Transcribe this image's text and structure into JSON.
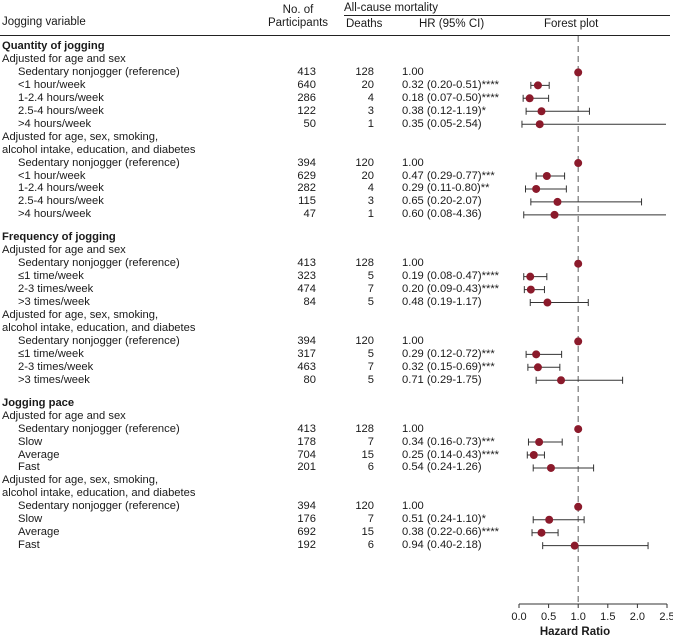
{
  "headers": {
    "variable": "Jogging variable",
    "participants_line1": "No. of",
    "participants_line2": "Participants",
    "mortality_group": "All-cause mortality",
    "deaths": "Deaths",
    "hr": "HR (95% CI)",
    "forest": "Forest plot"
  },
  "chart_data": {
    "type": "forest",
    "xlabel": "Hazard Ratio",
    "xlim": [
      0,
      2.5
    ],
    "ticks": [
      0.0,
      0.5,
      1.0,
      1.5,
      2.0,
      2.5
    ],
    "tick_labels": [
      "0.0",
      "0.5",
      "1.0",
      "1.5",
      "2.0",
      "2.5"
    ],
    "reference_line": 1.0,
    "point_color": "#8b1a2b",
    "rows": [
      {
        "kind": "section",
        "label": "Quantity of jogging"
      },
      {
        "kind": "subheader",
        "label": "Adjusted for age and sex"
      },
      {
        "kind": "data",
        "label": "Sedentary nonjogger (reference)",
        "n": "413",
        "deaths": "128",
        "hr_text": "1.00",
        "hr": 1.0,
        "lo": null,
        "hi": null
      },
      {
        "kind": "data",
        "label": "<1 hour/week",
        "n": "640",
        "deaths": "20",
        "hr_text": "0.32 (0.20-0.51)****",
        "hr": 0.32,
        "lo": 0.2,
        "hi": 0.51
      },
      {
        "kind": "data",
        "label": "1-2.4 hours/week",
        "n": "286",
        "deaths": "4",
        "hr_text": "0.18 (0.07-0.50)****",
        "hr": 0.18,
        "lo": 0.07,
        "hi": 0.5
      },
      {
        "kind": "data",
        "label": "2.5-4 hours/week",
        "n": "122",
        "deaths": "3",
        "hr_text": "0.38 (0.12-1.19)*",
        "hr": 0.38,
        "lo": 0.12,
        "hi": 1.19
      },
      {
        "kind": "data",
        "label": ">4 hours/week",
        "n": "50",
        "deaths": "1",
        "hr_text": "0.35 (0.05-2.54)",
        "hr": 0.35,
        "lo": 0.05,
        "hi": 2.54
      },
      {
        "kind": "subheader",
        "label": "Adjusted for age, sex, smoking,"
      },
      {
        "kind": "subheader",
        "label": "alcohol intake, education, and diabetes"
      },
      {
        "kind": "data",
        "label": "Sedentary nonjogger (reference)",
        "n": "394",
        "deaths": "120",
        "hr_text": "1.00",
        "hr": 1.0,
        "lo": null,
        "hi": null
      },
      {
        "kind": "data",
        "label": "<1 hour/week",
        "n": "629",
        "deaths": "20",
        "hr_text": "0.47 (0.29-0.77)***",
        "hr": 0.47,
        "lo": 0.29,
        "hi": 0.77
      },
      {
        "kind": "data",
        "label": "1-2.4 hours/week",
        "n": "282",
        "deaths": "4",
        "hr_text": "0.29 (0.11-0.80)**",
        "hr": 0.29,
        "lo": 0.11,
        "hi": 0.8
      },
      {
        "kind": "data",
        "label": "2.5-4 hours/week",
        "n": "115",
        "deaths": "3",
        "hr_text": "0.65 (0.20-2.07)",
        "hr": 0.65,
        "lo": 0.2,
        "hi": 2.07
      },
      {
        "kind": "data",
        "label": ">4 hours/week",
        "n": "47",
        "deaths": "1",
        "hr_text": "0.60 (0.08-4.36)",
        "hr": 0.6,
        "lo": 0.08,
        "hi": 4.36
      },
      {
        "kind": "spacer"
      },
      {
        "kind": "section",
        "label": "Frequency of jogging"
      },
      {
        "kind": "subheader",
        "label": "Adjusted for age and sex"
      },
      {
        "kind": "data",
        "label": "Sedentary nonjogger (reference)",
        "n": "413",
        "deaths": "128",
        "hr_text": "1.00",
        "hr": 1.0,
        "lo": null,
        "hi": null
      },
      {
        "kind": "data",
        "label": "≤1 time/week",
        "n": "323",
        "deaths": "5",
        "hr_text": "0.19 (0.08-0.47)****",
        "hr": 0.19,
        "lo": 0.08,
        "hi": 0.47
      },
      {
        "kind": "data",
        "label": "2-3 times/week",
        "n": "474",
        "deaths": "7",
        "hr_text": "0.20 (0.09-0.43)****",
        "hr": 0.2,
        "lo": 0.09,
        "hi": 0.43
      },
      {
        "kind": "data",
        "label": ">3 times/week",
        "n": "84",
        "deaths": "5",
        "hr_text": "0.48 (0.19-1.17)",
        "hr": 0.48,
        "lo": 0.19,
        "hi": 1.17
      },
      {
        "kind": "subheader",
        "label": "Adjusted for age, sex, smoking,"
      },
      {
        "kind": "subheader",
        "label": "alcohol intake, education, and diabetes"
      },
      {
        "kind": "data",
        "label": "Sedentary nonjogger (reference)",
        "n": "394",
        "deaths": "120",
        "hr_text": "1.00",
        "hr": 1.0,
        "lo": null,
        "hi": null
      },
      {
        "kind": "data",
        "label": "≤1 time/week",
        "n": "317",
        "deaths": "5",
        "hr_text": "0.29 (0.12-0.72)***",
        "hr": 0.29,
        "lo": 0.12,
        "hi": 0.72
      },
      {
        "kind": "data",
        "label": "2-3 times/week",
        "n": "463",
        "deaths": "7",
        "hr_text": "0.32 (0.15-0.69)***",
        "hr": 0.32,
        "lo": 0.15,
        "hi": 0.69
      },
      {
        "kind": "data",
        "label": ">3 times/week",
        "n": "80",
        "deaths": "5",
        "hr_text": "0.71 (0.29-1.75)",
        "hr": 0.71,
        "lo": 0.29,
        "hi": 1.75
      },
      {
        "kind": "spacer"
      },
      {
        "kind": "section",
        "label": "Jogging pace"
      },
      {
        "kind": "subheader",
        "label": "Adjusted for age and sex"
      },
      {
        "kind": "data",
        "label": "Sedentary nonjogger (reference)",
        "n": "413",
        "deaths": "128",
        "hr_text": "1.00",
        "hr": 1.0,
        "lo": null,
        "hi": null
      },
      {
        "kind": "data",
        "label": "Slow",
        "n": "178",
        "deaths": "7",
        "hr_text": "0.34 (0.16-0.73)***",
        "hr": 0.34,
        "lo": 0.16,
        "hi": 0.73
      },
      {
        "kind": "data",
        "label": "Average",
        "n": "704",
        "deaths": "15",
        "hr_text": "0.25 (0.14-0.43)****",
        "hr": 0.25,
        "lo": 0.14,
        "hi": 0.43
      },
      {
        "kind": "data",
        "label": "Fast",
        "n": "201",
        "deaths": "6",
        "hr_text": "0.54 (0.24-1.26)",
        "hr": 0.54,
        "lo": 0.24,
        "hi": 1.26
      },
      {
        "kind": "subheader",
        "label": "Adjusted for age, sex, smoking,"
      },
      {
        "kind": "subheader",
        "label": "alcohol intake, education, and diabetes"
      },
      {
        "kind": "data",
        "label": "Sedentary nonjogger (reference)",
        "n": "394",
        "deaths": "120",
        "hr_text": "1.00",
        "hr": 1.0,
        "lo": null,
        "hi": null
      },
      {
        "kind": "data",
        "label": "Slow",
        "n": "176",
        "deaths": "7",
        "hr_text": "0.51 (0.24-1.10)*",
        "hr": 0.51,
        "lo": 0.24,
        "hi": 1.1
      },
      {
        "kind": "data",
        "label": "Average",
        "n": "692",
        "deaths": "15",
        "hr_text": "0.38 (0.22-0.66)****",
        "hr": 0.38,
        "lo": 0.22,
        "hi": 0.66
      },
      {
        "kind": "data",
        "label": "Fast",
        "n": "192",
        "deaths": "6",
        "hr_text": "0.94 (0.40-2.18)",
        "hr": 0.94,
        "lo": 0.4,
        "hi": 2.18
      }
    ]
  }
}
